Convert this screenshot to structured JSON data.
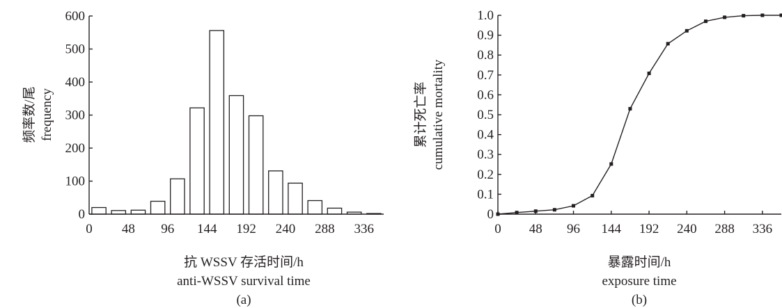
{
  "chart_data": [
    {
      "type": "bar",
      "panel_label": "(a)",
      "xlabel_cn": "抗 WSSV 存活时间/h",
      "xlabel_en": "anti-WSSV survival time",
      "ylabel_cn": "频率数/尾",
      "ylabel_en": "frequency",
      "xlim": [
        0,
        360
      ],
      "ylim": [
        0,
        600
      ],
      "xticks": [
        0,
        48,
        96,
        144,
        192,
        240,
        288,
        336
      ],
      "yticks": [
        0,
        100,
        200,
        300,
        400,
        500,
        600
      ],
      "bin_width": 24,
      "bin_centers": [
        12,
        36,
        60,
        84,
        108,
        132,
        156,
        180,
        204,
        228,
        252,
        276,
        300,
        324,
        348
      ],
      "values": [
        20,
        11,
        12,
        39,
        107,
        322,
        556,
        359,
        298,
        131,
        94,
        41,
        18,
        6,
        2
      ]
    },
    {
      "type": "line",
      "panel_label": "(b)",
      "xlabel_cn": "暴露时间/h",
      "xlabel_en": "exposure time",
      "ylabel_cn": "累计死亡率",
      "ylabel_en": "cumulative mortality",
      "xlim": [
        0,
        360
      ],
      "ylim": [
        0,
        1.0
      ],
      "xticks": [
        0,
        48,
        96,
        144,
        192,
        240,
        288,
        336
      ],
      "yticks": [
        "0",
        "0.1",
        "0.2",
        "0.3",
        "0.4",
        "0.5",
        "0.6",
        "0.7",
        "0.8",
        "0.9",
        "1.0"
      ],
      "x": [
        0,
        24,
        48,
        72,
        96,
        120,
        144,
        168,
        192,
        216,
        240,
        264,
        288,
        312,
        336,
        360
      ],
      "y": [
        0,
        0.008,
        0.015,
        0.022,
        0.042,
        0.093,
        0.252,
        0.53,
        0.708,
        0.857,
        0.922,
        0.97,
        0.99,
        0.998,
        1.0,
        1.0
      ]
    }
  ]
}
